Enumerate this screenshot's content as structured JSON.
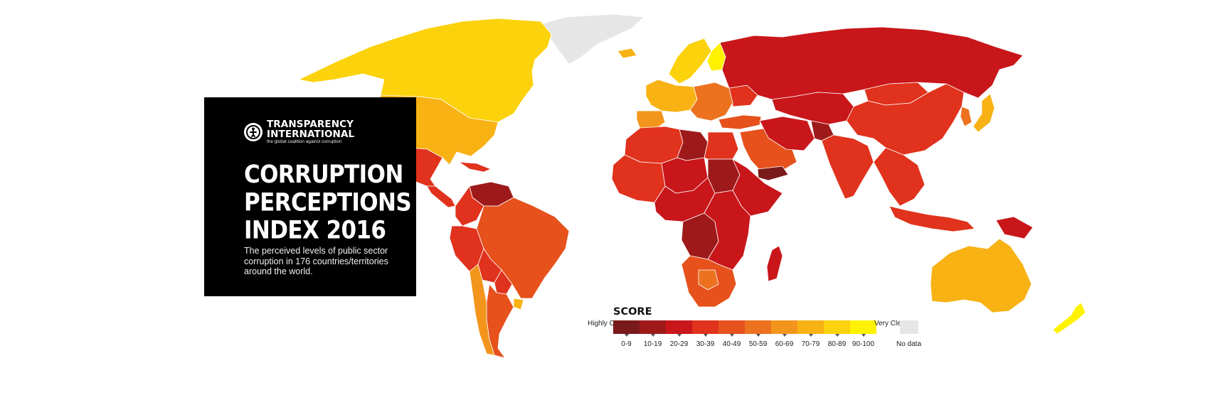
{
  "header": {
    "logo_line1": "TRANSPARENCY",
    "logo_line2": "INTERNATIONAL",
    "logo_tagline": "the global coalition against corruption",
    "title_lines": [
      "CORRUPTION",
      "PERCEPTIONS",
      "INDEX 2016"
    ],
    "subtitle": "The perceived levels of public sector corruption in 176 countries/territories around the world."
  },
  "legend": {
    "title": "SCORE",
    "low_label": "Highly Corrupt",
    "high_label": "Very Clean",
    "bins": [
      {
        "label": "0-9",
        "color": "#7a1b1b"
      },
      {
        "label": "10-19",
        "color": "#9e1a1a"
      },
      {
        "label": "20-29",
        "color": "#c8161a"
      },
      {
        "label": "30-39",
        "color": "#e0321c"
      },
      {
        "label": "40-49",
        "color": "#e6511c"
      },
      {
        "label": "50-59",
        "color": "#ec7220"
      },
      {
        "label": "60-69",
        "color": "#f3951c"
      },
      {
        "label": "70-79",
        "color": "#f8b214"
      },
      {
        "label": "80-89",
        "color": "#fbd20c"
      },
      {
        "label": "90-100",
        "color": "#fff200"
      }
    ],
    "no_data_label": "No data",
    "no_data_color": "#e6e6e6"
  },
  "map": {
    "regions": [
      {
        "name": "canada",
        "bin": 8
      },
      {
        "name": "united-states",
        "bin": 7
      },
      {
        "name": "mexico",
        "bin": 3
      },
      {
        "name": "central-america",
        "bin": 3
      },
      {
        "name": "caribbean",
        "bin": 3
      },
      {
        "name": "greenland",
        "bin": -1
      },
      {
        "name": "venezuela",
        "bin": 1
      },
      {
        "name": "colombia",
        "bin": 3
      },
      {
        "name": "peru",
        "bin": 3
      },
      {
        "name": "brazil",
        "bin": 4
      },
      {
        "name": "bolivia",
        "bin": 3
      },
      {
        "name": "paraguay",
        "bin": 3
      },
      {
        "name": "argentina",
        "bin": 4
      },
      {
        "name": "chile",
        "bin": 6
      },
      {
        "name": "uruguay",
        "bin": 7
      },
      {
        "name": "iceland",
        "bin": 7
      },
      {
        "name": "scandinavia",
        "bin": 8
      },
      {
        "name": "finland",
        "bin": 9
      },
      {
        "name": "western-europe",
        "bin": 7
      },
      {
        "name": "iberia",
        "bin": 6
      },
      {
        "name": "eastern-europe",
        "bin": 5
      },
      {
        "name": "ukraine",
        "bin": 3
      },
      {
        "name": "russia",
        "bin": 2
      },
      {
        "name": "turkey",
        "bin": 4
      },
      {
        "name": "north-africa",
        "bin": 3
      },
      {
        "name": "libya",
        "bin": 1
      },
      {
        "name": "egypt",
        "bin": 3
      },
      {
        "name": "west-africa",
        "bin": 3
      },
      {
        "name": "sahel",
        "bin": 2
      },
      {
        "name": "sudan",
        "bin": 1
      },
      {
        "name": "horn-of-africa",
        "bin": 2
      },
      {
        "name": "central-africa",
        "bin": 2
      },
      {
        "name": "dr-congo",
        "bin": 1
      },
      {
        "name": "east-africa",
        "bin": 2
      },
      {
        "name": "southern-africa",
        "bin": 4
      },
      {
        "name": "botswana",
        "bin": 5
      },
      {
        "name": "madagascar",
        "bin": 2
      },
      {
        "name": "saudi-arabia",
        "bin": 4
      },
      {
        "name": "yemen",
        "bin": 0
      },
      {
        "name": "iran",
        "bin": 2
      },
      {
        "name": "central-asia",
        "bin": 2
      },
      {
        "name": "afghanistan",
        "bin": 1
      },
      {
        "name": "india",
        "bin": 3
      },
      {
        "name": "china",
        "bin": 3
      },
      {
        "name": "mongolia",
        "bin": 3
      },
      {
        "name": "korea",
        "bin": 5
      },
      {
        "name": "japan",
        "bin": 7
      },
      {
        "name": "southeast-asia",
        "bin": 3
      },
      {
        "name": "indonesia",
        "bin": 3
      },
      {
        "name": "papua-new-guinea",
        "bin": 2
      },
      {
        "name": "australia",
        "bin": 7
      },
      {
        "name": "new-zealand",
        "bin": 9
      }
    ]
  }
}
